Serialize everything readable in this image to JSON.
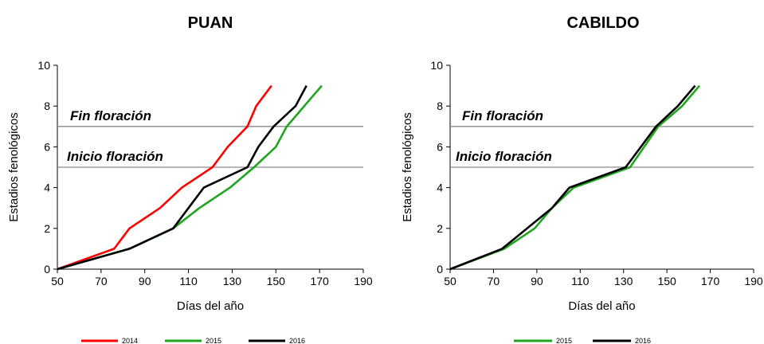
{
  "chart_data": [
    {
      "type": "line",
      "title": "PUAN",
      "xlabel": "Días del año",
      "ylabel": "Estadios fenológicos",
      "xlim": [
        50,
        190
      ],
      "ylim": [
        0,
        10
      ],
      "xticks": [
        "50",
        "70",
        "90",
        "110",
        "130",
        "150",
        "170",
        "190"
      ],
      "yticks": [
        "0",
        "2",
        "4",
        "6",
        "8",
        "10"
      ],
      "grid": false,
      "legend_position": "bottom",
      "annotations": [
        {
          "text": "Fin floración",
          "y": 7
        },
        {
          "text": "Inicio floración",
          "y": 5
        }
      ],
      "series": [
        {
          "name": "2014",
          "color": "#ff0000",
          "x": [
            50,
            76,
            83,
            97,
            107,
            121,
            128,
            137,
            141,
            148
          ],
          "y": [
            0,
            1,
            2,
            3,
            4,
            5,
            6,
            7,
            8,
            9
          ]
        },
        {
          "name": "2015",
          "color": "#1fa51f",
          "x": [
            50,
            83,
            103,
            115,
            129,
            140,
            150,
            155,
            163,
            171
          ],
          "y": [
            0,
            1,
            2,
            3,
            4,
            5,
            6,
            7,
            8,
            9
          ]
        },
        {
          "name": "2016",
          "color": "#000000",
          "x": [
            50,
            83,
            103,
            117,
            137,
            142,
            149,
            159,
            164
          ],
          "y": [
            0,
            1,
            2,
            4,
            5,
            6,
            7,
            8,
            9
          ]
        }
      ]
    },
    {
      "type": "line",
      "title": "CABILDO",
      "xlabel": "Días del año",
      "ylabel": "Estadios fenológicos",
      "xlim": [
        50,
        190
      ],
      "ylim": [
        0,
        10
      ],
      "xticks": [
        "50",
        "70",
        "90",
        "110",
        "130",
        "150",
        "170",
        "190"
      ],
      "yticks": [
        "0",
        "2",
        "4",
        "6",
        "8",
        "10"
      ],
      "grid": false,
      "legend_position": "bottom",
      "annotations": [
        {
          "text": "Fin floración",
          "y": 7
        },
        {
          "text": "Inicio floración",
          "y": 5
        },
        {
          "text": "",
          "y": null
        }
      ],
      "series": [
        {
          "name": "2015",
          "color": "#1fa51f",
          "x": [
            50,
            75,
            89,
            97,
            107,
            133,
            146,
            157,
            165
          ],
          "y": [
            0,
            1,
            2,
            3,
            4,
            5,
            7,
            8,
            9
          ]
        },
        {
          "name": "2016",
          "color": "#000000",
          "x": [
            50,
            74,
            97,
            105,
            131,
            138,
            145,
            155,
            163
          ],
          "y": [
            0,
            1,
            3,
            4,
            5,
            6,
            7,
            8,
            9
          ]
        }
      ]
    }
  ]
}
